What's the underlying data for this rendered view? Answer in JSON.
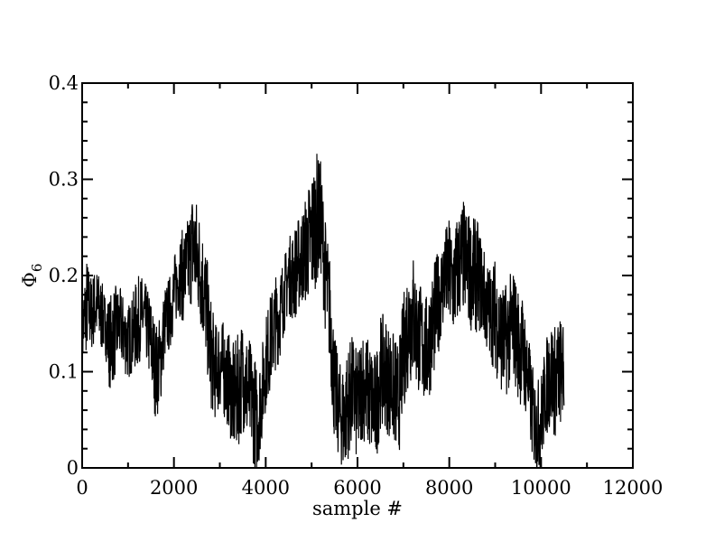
{
  "chart_data": {
    "type": "line",
    "xlabel": "sample #",
    "ylabel": "Φ",
    "ylabel_subscript": "6",
    "xlim": [
      0,
      12000
    ],
    "ylim": [
      0,
      0.4
    ],
    "x_ticks": [
      0,
      2000,
      4000,
      6000,
      8000,
      10000,
      12000
    ],
    "x_tick_labels": [
      "0",
      "2000",
      "4000",
      "6000",
      "8000",
      "10000",
      "12000"
    ],
    "y_ticks": [
      0,
      0.1,
      0.2,
      0.3,
      0.4
    ],
    "y_tick_labels": [
      "0",
      "0.1",
      "0.2",
      "0.3",
      "0.4"
    ],
    "grid": false,
    "legend": "none",
    "line_color": "#000000",
    "series": [
      {
        "x": [
          0,
          100,
          200,
          300,
          400,
          500,
          600,
          700,
          800,
          900,
          1000,
          1100,
          1200,
          1300,
          1400,
          1500,
          1600,
          1700,
          1800,
          1900,
          2000,
          2100,
          2200,
          2300,
          2400,
          2500,
          2600,
          2700,
          2800,
          2900,
          3000,
          3100,
          3200,
          3300,
          3400,
          3500,
          3600,
          3700,
          3800,
          3900,
          4000,
          4100,
          4200,
          4300,
          4400,
          4500,
          4600,
          4700,
          4800,
          4900,
          5000,
          5100,
          5200,
          5300,
          5400,
          5500,
          5600,
          5700,
          5800,
          5900,
          6000,
          6100,
          6200,
          6300,
          6400,
          6500,
          6600,
          6700,
          6800,
          6900,
          7000,
          7100,
          7200,
          7300,
          7400,
          7500,
          7600,
          7700,
          7800,
          7900,
          8000,
          8100,
          8200,
          8300,
          8400,
          8500,
          8600,
          8700,
          8800,
          8900,
          9000,
          9100,
          9200,
          9300,
          9400,
          9500,
          9600,
          9700,
          9800,
          9900,
          10000,
          10100,
          10200,
          10300,
          10400,
          10500
        ],
        "y": [
          0.14,
          0.17,
          0.16,
          0.17,
          0.16,
          0.15,
          0.13,
          0.14,
          0.15,
          0.14,
          0.13,
          0.14,
          0.15,
          0.16,
          0.15,
          0.13,
          0.1,
          0.11,
          0.15,
          0.16,
          0.18,
          0.2,
          0.2,
          0.21,
          0.23,
          0.22,
          0.2,
          0.17,
          0.12,
          0.1,
          0.11,
          0.1,
          0.09,
          0.07,
          0.08,
          0.1,
          0.08,
          0.07,
          0.05,
          0.07,
          0.11,
          0.13,
          0.15,
          0.16,
          0.18,
          0.2,
          0.2,
          0.21,
          0.22,
          0.23,
          0.24,
          0.26,
          0.26,
          0.2,
          0.16,
          0.08,
          0.06,
          0.05,
          0.07,
          0.08,
          0.06,
          0.09,
          0.08,
          0.07,
          0.06,
          0.1,
          0.1,
          0.09,
          0.08,
          0.07,
          0.12,
          0.15,
          0.16,
          0.14,
          0.13,
          0.12,
          0.14,
          0.16,
          0.18,
          0.2,
          0.2,
          0.19,
          0.21,
          0.22,
          0.21,
          0.2,
          0.2,
          0.19,
          0.17,
          0.16,
          0.16,
          0.14,
          0.13,
          0.14,
          0.15,
          0.13,
          0.12,
          0.1,
          0.06,
          0.04,
          0.05,
          0.08,
          0.1,
          0.09,
          0.1,
          0.1
        ],
        "amplitude": [
          0.04,
          0.05,
          0.04,
          0.04,
          0.04,
          0.03,
          0.05,
          0.05,
          0.04,
          0.04,
          0.04,
          0.04,
          0.05,
          0.04,
          0.04,
          0.05,
          0.05,
          0.05,
          0.04,
          0.04,
          0.04,
          0.04,
          0.05,
          0.05,
          0.06,
          0.06,
          0.06,
          0.06,
          0.06,
          0.05,
          0.05,
          0.05,
          0.05,
          0.06,
          0.06,
          0.06,
          0.06,
          0.06,
          0.06,
          0.05,
          0.05,
          0.05,
          0.05,
          0.05,
          0.04,
          0.04,
          0.05,
          0.05,
          0.05,
          0.06,
          0.07,
          0.07,
          0.06,
          0.06,
          0.06,
          0.06,
          0.05,
          0.06,
          0.06,
          0.06,
          0.06,
          0.06,
          0.06,
          0.06,
          0.06,
          0.06,
          0.06,
          0.06,
          0.06,
          0.06,
          0.06,
          0.07,
          0.07,
          0.06,
          0.06,
          0.06,
          0.06,
          0.06,
          0.05,
          0.05,
          0.06,
          0.06,
          0.06,
          0.06,
          0.06,
          0.06,
          0.06,
          0.05,
          0.05,
          0.05,
          0.06,
          0.06,
          0.06,
          0.06,
          0.06,
          0.06,
          0.06,
          0.05,
          0.05,
          0.05,
          0.05,
          0.05,
          0.06,
          0.06,
          0.06,
          0.05
        ]
      }
    ]
  }
}
